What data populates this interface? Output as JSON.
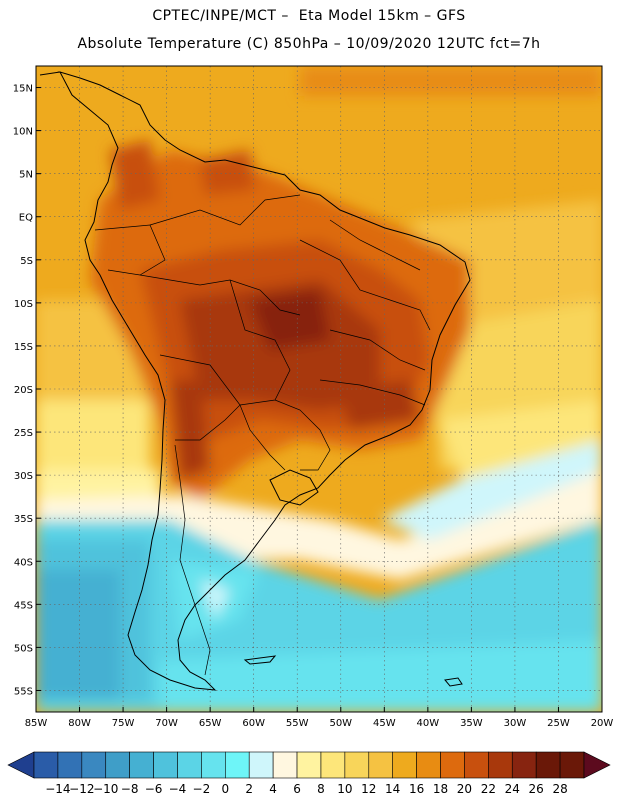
{
  "header": {
    "title_line1": "CPTEC/INPE/MCT –  Eta Model 15km – GFS",
    "title_line2": "Absolute Temperature (C) 850hPa – 10/09/2020 12UTC fct=7h"
  },
  "map": {
    "lat_labels": [
      "15N",
      "10N",
      "5N",
      "EQ",
      "5S",
      "10S",
      "15S",
      "20S",
      "25S",
      "30S",
      "35S",
      "40S",
      "45S",
      "50S",
      "55S"
    ],
    "lon_labels": [
      "85W",
      "80W",
      "75W",
      "70W",
      "65W",
      "60W",
      "55W",
      "50W",
      "45W",
      "40W",
      "35W",
      "30W",
      "25W",
      "20W"
    ],
    "lon_range": [
      -85,
      -20
    ],
    "lat_range": [
      -57.5,
      17.5
    ],
    "grid": true
  },
  "colorbar": {
    "labels": [
      "-14",
      "-12",
      "-10",
      "-8",
      "-6",
      "-4",
      "-2",
      "0",
      "2",
      "4",
      "6",
      "8",
      "10",
      "12",
      "14",
      "16",
      "18",
      "20",
      "22",
      "24",
      "26",
      "28"
    ],
    "colors": [
      "#1f3f8f",
      "#2a5ca8",
      "#3272b5",
      "#3a88c0",
      "#3f9ec8",
      "#45b0d2",
      "#4fc2dc",
      "#5bd4e6",
      "#66e3ee",
      "#6ef5f8",
      "#cff6fb",
      "#fff7e0",
      "#fff3a0",
      "#fde67a",
      "#f8d55a",
      "#f5c242",
      "#eeaa1e",
      "#e88c12",
      "#dd6a0e",
      "#c8500e",
      "#a8380c",
      "#872410",
      "#6a1808",
      "#5c0a1e"
    ]
  }
}
